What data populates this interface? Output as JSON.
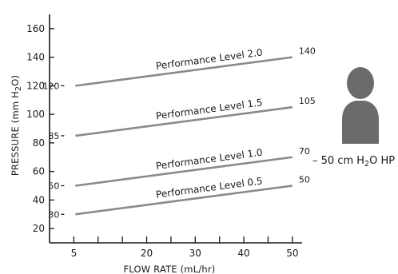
{
  "chart_data": {
    "type": "line",
    "xlabel": "FLOW RATE (mL/hr)",
    "ylabel": {
      "prefix": "PRESSURE  (mm H",
      "sub": "2",
      "suffix": "O)"
    },
    "x_ticks": [
      5,
      20,
      30,
      40,
      50
    ],
    "y_ticks": [
      20,
      40,
      60,
      80,
      100,
      120,
      140,
      160
    ],
    "xlim": [
      0,
      52
    ],
    "ylim": [
      10,
      170
    ],
    "series": [
      {
        "name": "Performance Level 2.0",
        "x": [
          5,
          50
        ],
        "y": [
          120,
          140
        ],
        "start_label": "120",
        "end_label": "140"
      },
      {
        "name": "Performance Level 1.5",
        "x": [
          5,
          50
        ],
        "y": [
          85,
          105
        ],
        "start_label": "85",
        "end_label": "105"
      },
      {
        "name": "Performance Level 1.0",
        "x": [
          5,
          50
        ],
        "y": [
          50,
          70
        ],
        "start_label": "50",
        "end_label": "70"
      },
      {
        "name": "Performance Level 0.5",
        "x": [
          5,
          50
        ],
        "y": [
          30,
          50
        ],
        "start_label": "30",
        "end_label": "50"
      }
    ],
    "series_color": "#8a8a8a",
    "grid": false
  },
  "annotation": {
    "icon": "person-silhouette-icon",
    "icon_color": "#6b6b6b",
    "text_prefix": "– 50 cm H",
    "text_sub": "2",
    "text_suffix": "O HP"
  }
}
